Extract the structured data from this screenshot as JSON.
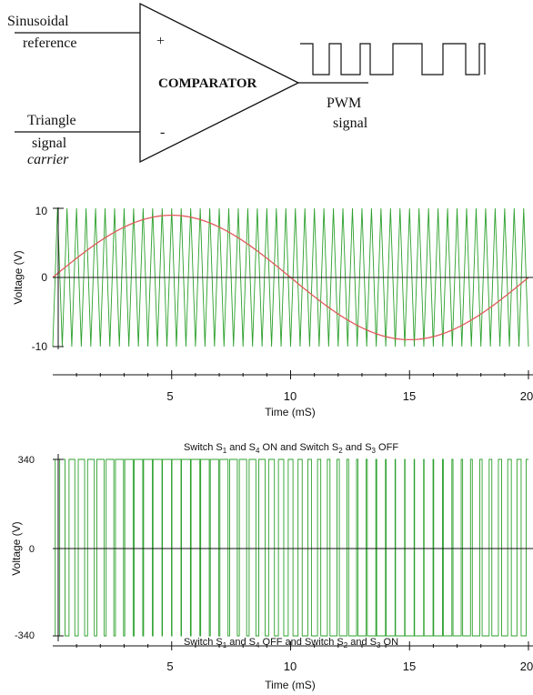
{
  "colors": {
    "carrier": "#2ca02c",
    "reference": "#e05a5a",
    "pwm_output": "#2ca02c",
    "axis": "#111111",
    "text": "#111111"
  },
  "diagram": {
    "labels": {
      "sinusoidal_line1": "Sinusoidal",
      "sinusoidal_line2": "reference",
      "plus": "+",
      "minus": "-",
      "comparator": "COMPARATOR",
      "triangle_line1": "Triangle",
      "triangle_line2": "signal",
      "triangle_line3": "carrier",
      "pwm_line1": "PWM",
      "pwm_line2": "signal"
    }
  },
  "chart_data": [
    {
      "type": "line",
      "title": "",
      "xlabel": "Time (mS)",
      "ylabel": "Voltage (V)",
      "xlim": [
        0,
        20
      ],
      "ylim": [
        -10,
        10
      ],
      "xticks": [
        "5",
        "10",
        "15",
        "20"
      ],
      "yticks": [
        "10",
        "0",
        "-10"
      ],
      "grid": false,
      "series": [
        {
          "role": "carrier",
          "shape": "triangle",
          "frequency_khz": 2.5,
          "amplitude": 10
        },
        {
          "role": "reference",
          "shape": "sine",
          "frequency_hz": 50,
          "amplitude": 9
        }
      ]
    },
    {
      "type": "line",
      "title": "",
      "xlabel": "Time (mS)",
      "ylabel": "Voltage (V)",
      "xlim": [
        0,
        20
      ],
      "ylim": [
        -340,
        340
      ],
      "xticks": [
        "5",
        "10",
        "15",
        "20"
      ],
      "yticks": [
        "340",
        "0",
        "-340"
      ],
      "grid": false,
      "series": [
        {
          "role": "pwm_output",
          "shape": "bipolar_square",
          "levels": [
            -340,
            340
          ]
        }
      ],
      "annotations": {
        "top_prefix": "Switch S",
        "top_sub1": "1",
        "top_mid1": " and S",
        "top_sub2": "4",
        "top_mid2": " ON and Switch S",
        "top_sub3": "2",
        "top_mid3": " and S",
        "top_sub4": "3",
        "top_suffix": " OFF",
        "bottom_prefix": "Switch S",
        "bottom_sub1": "1",
        "bottom_mid1": " and S",
        "bottom_sub2": "4",
        "bottom_mid2": " OFF and Switch S",
        "bottom_sub3": "2",
        "bottom_mid3": " and S",
        "bottom_sub4": "3",
        "bottom_suffix": " ON"
      }
    }
  ]
}
